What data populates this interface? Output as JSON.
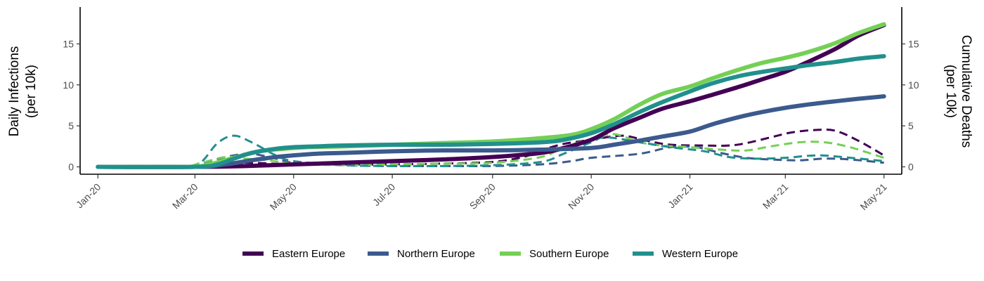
{
  "chart_data": {
    "type": "line",
    "ylabel_left": [
      "Daily Infections",
      "(per 10k)"
    ],
    "ylabel_right": [
      "Cumulative Deaths",
      "(per 10k)"
    ],
    "x_ticks": [
      {
        "date": "2020-01-01",
        "label": "Jan-20"
      },
      {
        "date": "2020-03-01",
        "label": "Mar-20"
      },
      {
        "date": "2020-05-01",
        "label": "May-20"
      },
      {
        "date": "2020-07-01",
        "label": "Jul-20"
      },
      {
        "date": "2020-09-01",
        "label": "Sep-20"
      },
      {
        "date": "2020-11-01",
        "label": "Nov-20"
      },
      {
        "date": "2021-01-01",
        "label": "Jan-21"
      },
      {
        "date": "2021-03-01",
        "label": "Mar-21"
      },
      {
        "date": "2021-05-01",
        "label": "May-21"
      }
    ],
    "xlim": [
      "2019-12-21",
      "2021-05-12"
    ],
    "y_ticks": [
      0,
      5,
      10,
      15
    ],
    "ylim": [
      -0.9,
      19.5
    ],
    "grid": false,
    "legend_position": "bottom",
    "series": [
      {
        "name": "Eastern Europe",
        "color": "#440154",
        "cumulative": [
          [
            "2020-01-01",
            0
          ],
          [
            "2020-03-01",
            0
          ],
          [
            "2020-04-01",
            0.1
          ],
          [
            "2020-05-01",
            0.3
          ],
          [
            "2020-06-01",
            0.5
          ],
          [
            "2020-07-01",
            0.7
          ],
          [
            "2020-08-01",
            0.9
          ],
          [
            "2020-09-01",
            1.2
          ],
          [
            "2020-10-01",
            1.7
          ],
          [
            "2020-10-15",
            2.3
          ],
          [
            "2020-11-01",
            3.3
          ],
          [
            "2020-11-15",
            4.7
          ],
          [
            "2020-12-01",
            6.0
          ],
          [
            "2020-12-15",
            7.1
          ],
          [
            "2021-01-01",
            8.0
          ],
          [
            "2021-01-15",
            8.8
          ],
          [
            "2021-02-01",
            9.8
          ],
          [
            "2021-02-15",
            10.7
          ],
          [
            "2021-03-01",
            11.6
          ],
          [
            "2021-03-15",
            12.8
          ],
          [
            "2021-04-01",
            14.4
          ],
          [
            "2021-04-15",
            16.0
          ],
          [
            "2021-05-01",
            17.3
          ]
        ],
        "daily": [
          [
            "2020-01-01",
            0
          ],
          [
            "2020-02-20",
            0
          ],
          [
            "2020-03-15",
            0.2
          ],
          [
            "2020-04-01",
            0.5
          ],
          [
            "2020-05-01",
            0.3
          ],
          [
            "2020-06-01",
            0.3
          ],
          [
            "2020-07-01",
            0.3
          ],
          [
            "2020-08-01",
            0.4
          ],
          [
            "2020-09-01",
            0.6
          ],
          [
            "2020-09-20",
            1.2
          ],
          [
            "2020-10-01",
            2.0
          ],
          [
            "2020-10-15",
            2.8
          ],
          [
            "2020-11-01",
            3.3
          ],
          [
            "2020-11-20",
            3.8
          ],
          [
            "2020-12-05",
            3.2
          ],
          [
            "2020-12-20",
            2.7
          ],
          [
            "2021-01-10",
            2.6
          ],
          [
            "2021-01-25",
            2.6
          ],
          [
            "2021-02-05",
            2.9
          ],
          [
            "2021-02-20",
            3.6
          ],
          [
            "2021-03-05",
            4.2
          ],
          [
            "2021-03-20",
            4.5
          ],
          [
            "2021-04-01",
            4.4
          ],
          [
            "2021-04-15",
            3.2
          ],
          [
            "2021-05-01",
            1.4
          ]
        ]
      },
      {
        "name": "Northern Europe",
        "color": "#3b5a8d",
        "cumulative": [
          [
            "2020-01-01",
            0
          ],
          [
            "2020-03-01",
            0
          ],
          [
            "2020-03-20",
            0.3
          ],
          [
            "2020-04-05",
            0.8
          ],
          [
            "2020-04-20",
            1.2
          ],
          [
            "2020-05-01",
            1.4
          ],
          [
            "2020-05-15",
            1.6
          ],
          [
            "2020-06-01",
            1.7
          ],
          [
            "2020-07-01",
            1.9
          ],
          [
            "2020-08-01",
            2.0
          ],
          [
            "2020-09-01",
            2.0
          ],
          [
            "2020-10-01",
            2.1
          ],
          [
            "2020-11-01",
            2.3
          ],
          [
            "2020-11-15",
            2.7
          ],
          [
            "2020-12-01",
            3.2
          ],
          [
            "2020-12-15",
            3.7
          ],
          [
            "2021-01-01",
            4.3
          ],
          [
            "2021-01-15",
            5.2
          ],
          [
            "2021-02-01",
            6.1
          ],
          [
            "2021-02-15",
            6.7
          ],
          [
            "2021-03-01",
            7.2
          ],
          [
            "2021-03-15",
            7.6
          ],
          [
            "2021-04-01",
            8.0
          ],
          [
            "2021-04-15",
            8.3
          ],
          [
            "2021-05-01",
            8.6
          ]
        ],
        "daily": [
          [
            "2020-01-01",
            0
          ],
          [
            "2020-02-25",
            0
          ],
          [
            "2020-03-10",
            0.7
          ],
          [
            "2020-03-25",
            1.4
          ],
          [
            "2020-04-05",
            1.6
          ],
          [
            "2020-04-20",
            1.0
          ],
          [
            "2020-05-01",
            0.5
          ],
          [
            "2020-06-01",
            0.2
          ],
          [
            "2020-07-01",
            0.1
          ],
          [
            "2020-08-01",
            0.1
          ],
          [
            "2020-09-01",
            0.1
          ],
          [
            "2020-10-01",
            0.3
          ],
          [
            "2020-10-20",
            0.7
          ],
          [
            "2020-11-01",
            1.1
          ],
          [
            "2020-12-01",
            1.6
          ],
          [
            "2020-12-20",
            2.4
          ],
          [
            "2021-01-05",
            2.4
          ],
          [
            "2021-01-20",
            1.7
          ],
          [
            "2021-02-05",
            1.1
          ],
          [
            "2021-02-20",
            0.9
          ],
          [
            "2021-03-10",
            0.8
          ],
          [
            "2021-03-25",
            1.0
          ],
          [
            "2021-04-10",
            0.9
          ],
          [
            "2021-05-01",
            0.5
          ]
        ]
      },
      {
        "name": "Southern Europe",
        "color": "#74d055",
        "cumulative": [
          [
            "2020-01-01",
            0
          ],
          [
            "2020-02-25",
            0
          ],
          [
            "2020-03-10",
            0.3
          ],
          [
            "2020-03-25",
            1.1
          ],
          [
            "2020-04-10",
            1.9
          ],
          [
            "2020-04-25",
            2.2
          ],
          [
            "2020-05-10",
            2.4
          ],
          [
            "2020-06-01",
            2.5
          ],
          [
            "2020-07-01",
            2.7
          ],
          [
            "2020-08-01",
            2.9
          ],
          [
            "2020-09-01",
            3.1
          ],
          [
            "2020-10-01",
            3.5
          ],
          [
            "2020-10-20",
            3.9
          ],
          [
            "2020-11-01",
            4.6
          ],
          [
            "2020-11-15",
            5.8
          ],
          [
            "2020-12-01",
            7.6
          ],
          [
            "2020-12-15",
            8.9
          ],
          [
            "2021-01-01",
            9.8
          ],
          [
            "2021-01-15",
            10.8
          ],
          [
            "2021-02-01",
            11.9
          ],
          [
            "2021-02-15",
            12.7
          ],
          [
            "2021-03-01",
            13.3
          ],
          [
            "2021-03-15",
            14.0
          ],
          [
            "2021-04-01",
            15.1
          ],
          [
            "2021-04-15",
            16.3
          ],
          [
            "2021-05-01",
            17.4
          ]
        ],
        "daily": [
          [
            "2020-01-01",
            0
          ],
          [
            "2020-02-20",
            0
          ],
          [
            "2020-03-05",
            0.5
          ],
          [
            "2020-03-20",
            1.2
          ],
          [
            "2020-04-01",
            1.0
          ],
          [
            "2020-04-15",
            0.8
          ],
          [
            "2020-05-01",
            0.4
          ],
          [
            "2020-06-01",
            0.2
          ],
          [
            "2020-07-01",
            0.3
          ],
          [
            "2020-08-01",
            0.4
          ],
          [
            "2020-09-01",
            0.5
          ],
          [
            "2020-10-01",
            1.2
          ],
          [
            "2020-10-15",
            2.4
          ],
          [
            "2020-11-01",
            3.4
          ],
          [
            "2020-11-15",
            4.0
          ],
          [
            "2020-12-01",
            3.0
          ],
          [
            "2020-12-15",
            2.6
          ],
          [
            "2021-01-01",
            2.4
          ],
          [
            "2021-01-20",
            2.1
          ],
          [
            "2021-02-05",
            2.0
          ],
          [
            "2021-02-20",
            2.5
          ],
          [
            "2021-03-10",
            3.0
          ],
          [
            "2021-03-25",
            3.0
          ],
          [
            "2021-04-10",
            2.4
          ],
          [
            "2021-05-01",
            1.1
          ]
        ]
      },
      {
        "name": "Western Europe",
        "color": "#21908c",
        "cumulative": [
          [
            "2020-01-01",
            0
          ],
          [
            "2020-03-01",
            0
          ],
          [
            "2020-03-15",
            0.3
          ],
          [
            "2020-03-25",
            1.0
          ],
          [
            "2020-04-05",
            1.7
          ],
          [
            "2020-04-20",
            2.2
          ],
          [
            "2020-05-01",
            2.4
          ],
          [
            "2020-05-15",
            2.5
          ],
          [
            "2020-06-01",
            2.6
          ],
          [
            "2020-07-01",
            2.7
          ],
          [
            "2020-08-01",
            2.7
          ],
          [
            "2020-09-01",
            2.8
          ],
          [
            "2020-10-01",
            3.0
          ],
          [
            "2020-10-15",
            3.3
          ],
          [
            "2020-11-01",
            4.1
          ],
          [
            "2020-11-15",
            5.2
          ],
          [
            "2020-12-01",
            6.7
          ],
          [
            "2020-12-15",
            7.9
          ],
          [
            "2021-01-01",
            9.2
          ],
          [
            "2021-01-15",
            10.2
          ],
          [
            "2021-02-01",
            11.1
          ],
          [
            "2021-02-15",
            11.6
          ],
          [
            "2021-03-01",
            12.0
          ],
          [
            "2021-03-15",
            12.4
          ],
          [
            "2021-04-01",
            12.8
          ],
          [
            "2021-04-15",
            13.2
          ],
          [
            "2021-05-01",
            13.5
          ]
        ],
        "daily": [
          [
            "2020-01-01",
            0
          ],
          [
            "2020-02-25",
            0
          ],
          [
            "2020-03-05",
            0.6
          ],
          [
            "2020-03-15",
            2.9
          ],
          [
            "2020-03-25",
            3.8
          ],
          [
            "2020-04-05",
            3.0
          ],
          [
            "2020-04-20",
            1.4
          ],
          [
            "2020-05-01",
            0.7
          ],
          [
            "2020-06-01",
            0.2
          ],
          [
            "2020-07-01",
            0.1
          ],
          [
            "2020-08-01",
            0.1
          ],
          [
            "2020-09-01",
            0.2
          ],
          [
            "2020-10-01",
            0.6
          ],
          [
            "2020-10-15",
            1.6
          ],
          [
            "2020-11-01",
            3.0
          ],
          [
            "2020-11-10",
            3.6
          ],
          [
            "2020-12-01",
            3.0
          ],
          [
            "2020-12-20",
            2.4
          ],
          [
            "2021-01-10",
            1.9
          ],
          [
            "2021-01-25",
            1.2
          ],
          [
            "2021-02-10",
            1.0
          ],
          [
            "2021-03-01",
            1.1
          ],
          [
            "2021-03-20",
            1.4
          ],
          [
            "2021-04-05",
            1.2
          ],
          [
            "2021-05-01",
            0.7
          ]
        ]
      }
    ]
  }
}
